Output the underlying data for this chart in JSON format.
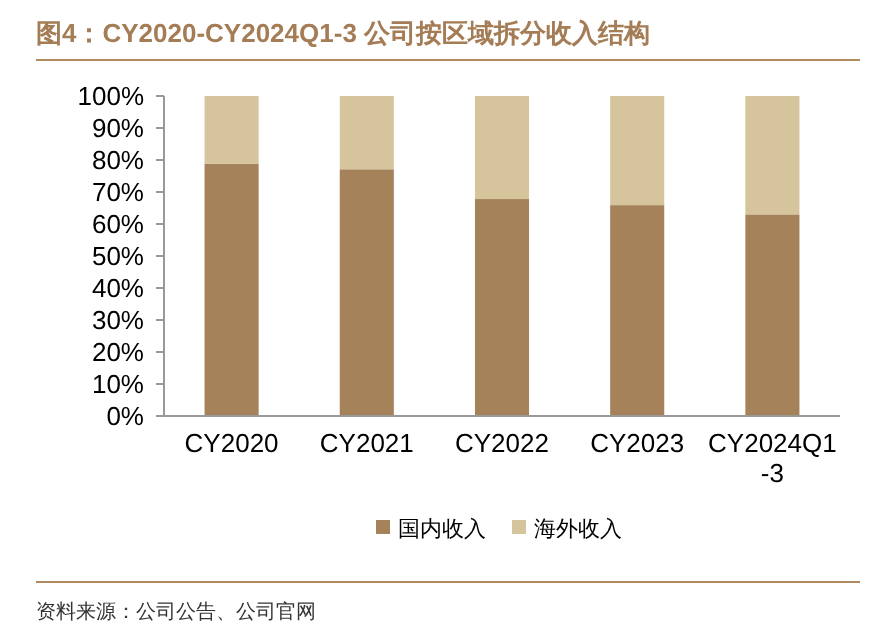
{
  "chart_data": {
    "type": "bar",
    "title": "图4：CY2020-CY2024Q1-3 公司按区域拆分收入结构",
    "categories": [
      "CY2020",
      "CY2021",
      "CY2022",
      "CY2023",
      "CY2024Q1-3"
    ],
    "series": [
      {
        "name": "国内收入",
        "color": "#a5825a",
        "values": [
          78.8,
          77.1,
          67.8,
          65.9,
          63.0
        ]
      },
      {
        "name": "海外收入",
        "color": "#d6c49c",
        "values": [
          21.2,
          22.9,
          32.2,
          34.1,
          37.0
        ]
      }
    ],
    "stacked": true,
    "ylim": [
      0,
      100
    ],
    "yticks": [
      {
        "value": 0,
        "label": "0%"
      },
      {
        "value": 10,
        "label": "10%"
      },
      {
        "value": 20,
        "label": "20%"
      },
      {
        "value": 30,
        "label": "30%"
      },
      {
        "value": 40,
        "label": "40%"
      },
      {
        "value": 50,
        "label": "50%"
      },
      {
        "value": 60,
        "label": "60%"
      },
      {
        "value": 70,
        "label": "70%"
      },
      {
        "value": 80,
        "label": "80%"
      },
      {
        "value": 90,
        "label": "90%"
      },
      {
        "value": 100,
        "label": "100%"
      }
    ],
    "grid": false,
    "legend": "bottom",
    "annotations": [
      "资料来源：公司公告、公司官网"
    ]
  }
}
